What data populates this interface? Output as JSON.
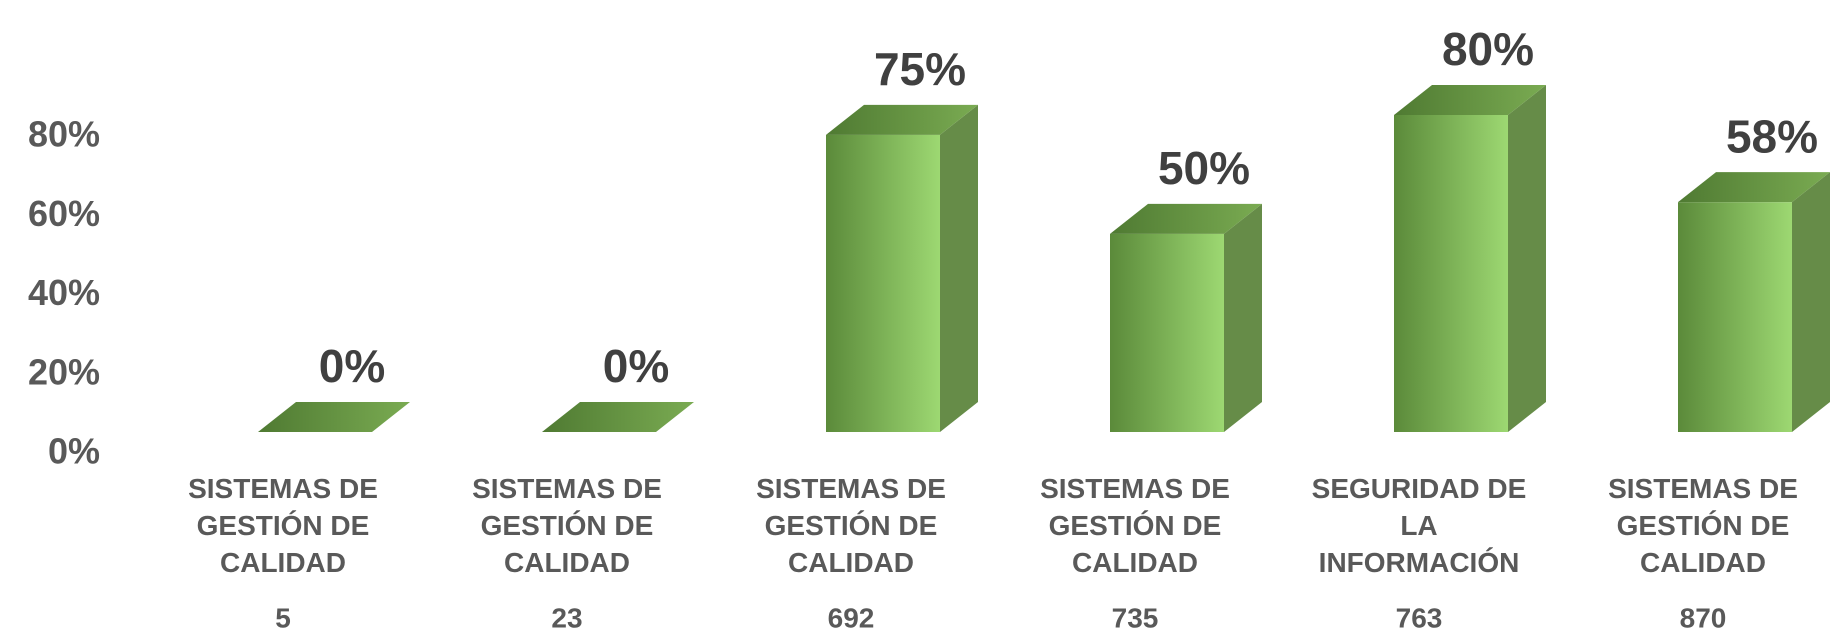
{
  "chart_data": {
    "type": "bar3d",
    "categories": [
      "SISTEMAS DE GESTIÓN DE CALIDAD",
      "SISTEMAS DE GESTIÓN DE CALIDAD",
      "SISTEMAS DE GESTIÓN DE CALIDAD",
      "SISTEMAS DE GESTIÓN DE CALIDAD",
      "SEGURIDAD DE LA INFORMACIÓN",
      "SISTEMAS DE GESTIÓN DE CALIDAD"
    ],
    "sublabels": [
      "5",
      "23",
      "692",
      "735",
      "763",
      "870"
    ],
    "values": [
      0,
      0,
      75,
      50,
      80,
      58
    ],
    "value_labels": [
      "0%",
      "0%",
      "75%",
      "50%",
      "80%",
      "58%"
    ],
    "color": "#7fb356",
    "ylim": [
      0,
      80
    ],
    "yticks": [
      {
        "value": 0,
        "label": "0%"
      },
      {
        "value": 20,
        "label": "20%"
      },
      {
        "value": 40,
        "label": "40%"
      },
      {
        "value": 60,
        "label": "60%"
      },
      {
        "value": 80,
        "label": "80%"
      }
    ]
  }
}
